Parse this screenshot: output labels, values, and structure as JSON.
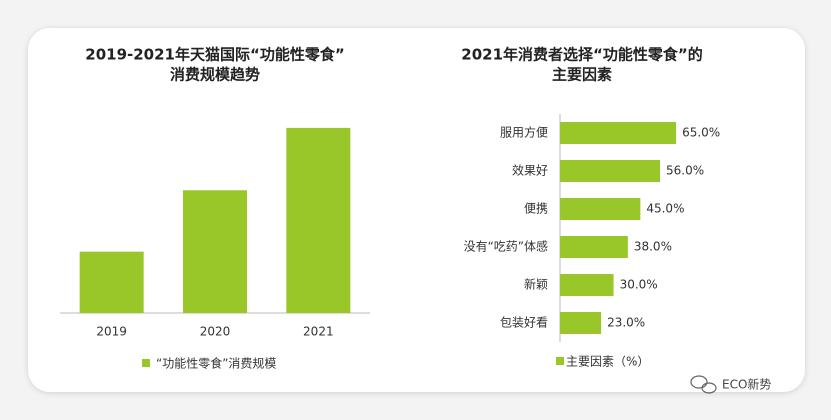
{
  "chart_data": [
    {
      "type": "bar",
      "title": [
        "2019-2021年天猫国际“功能性零食”",
        "消费规模趋势"
      ],
      "categories": [
        "2019",
        "2020",
        "2021"
      ],
      "series": [
        {
          "name": "“功能性零食”消费规模",
          "color": "#99c72a",
          "values": [
            59,
            118,
            178
          ]
        }
      ],
      "ylim": [
        0,
        200
      ],
      "legend": "bottom"
    },
    {
      "type": "barh",
      "title": [
        "2021年消费者选择“功能性零食”的",
        "主要因素"
      ],
      "categories": [
        "服用方便",
        "效果好",
        "便携",
        "没有“吃药”体感",
        "新颖",
        "包装好看"
      ],
      "series": [
        {
          "name": "主要因素（%）",
          "color": "#99c72a",
          "values": [
            65,
            56,
            45,
            38,
            30,
            23
          ],
          "value_labels": [
            "65.0%",
            "56.0%",
            "45.0%",
            "38.0%",
            "30.0%",
            "23.0%"
          ]
        }
      ],
      "xlim": [
        0,
        70
      ],
      "legend": "bottom"
    }
  ],
  "watermark": "ECO新势"
}
